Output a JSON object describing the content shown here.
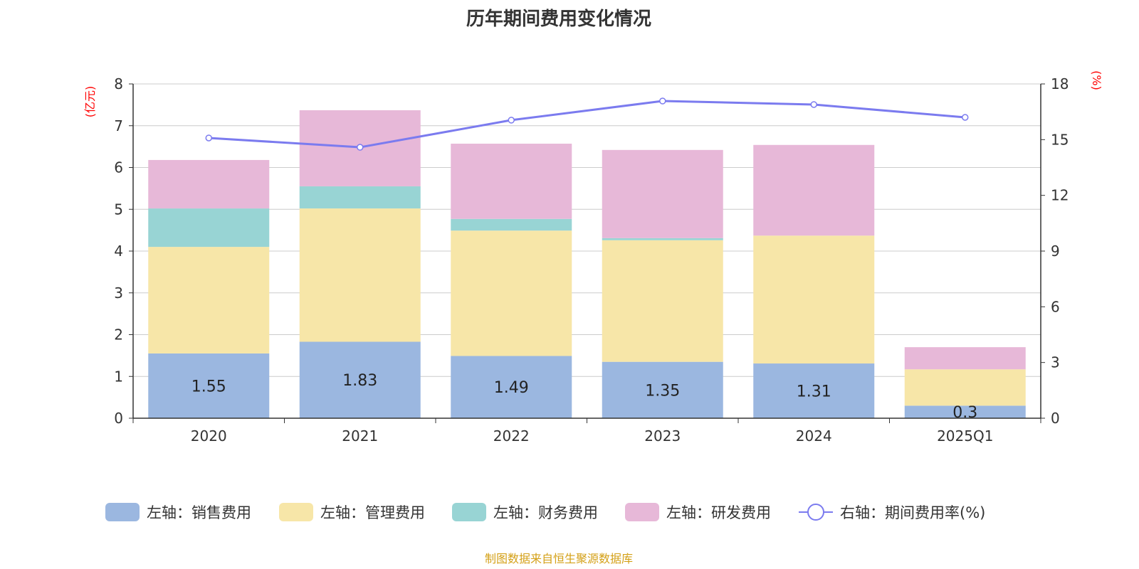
{
  "chart_data": {
    "type": "bar",
    "stacked": true,
    "title": "历年期间费用变化情况",
    "source": "制图数据来自恒生聚源数据库",
    "categories": [
      "2020",
      "2021",
      "2022",
      "2023",
      "2024",
      "2025Q1"
    ],
    "y_left": {
      "label": "(亿元)",
      "range": [
        0,
        8
      ],
      "ticks": [
        0,
        1,
        2,
        3,
        4,
        5,
        6,
        7,
        8
      ]
    },
    "y_right": {
      "label": "(%)",
      "range": [
        0,
        18
      ],
      "ticks": [
        0,
        3,
        6,
        9,
        12,
        15,
        18
      ]
    },
    "grid": true,
    "legend_position": "bottom",
    "series": [
      {
        "name": "左轴：销售费用",
        "type": "bar",
        "axis": "left",
        "color": "#9bb7e0",
        "values": [
          1.55,
          1.83,
          1.49,
          1.35,
          1.31,
          0.3
        ],
        "show_labels": true
      },
      {
        "name": "左轴：管理费用",
        "type": "bar",
        "axis": "left",
        "color": "#f7e6a8",
        "values": [
          2.55,
          3.19,
          3.0,
          2.91,
          3.06,
          0.87
        ]
      },
      {
        "name": "左轴：财务费用",
        "type": "bar",
        "axis": "left",
        "color": "#98d4d4",
        "values": [
          0.92,
          0.53,
          0.28,
          0.05,
          0.0,
          0.0
        ]
      },
      {
        "name": "左轴：研发费用",
        "type": "bar",
        "axis": "left",
        "color": "#e7b8d8",
        "values": [
          1.16,
          1.82,
          1.8,
          2.11,
          2.17,
          0.53
        ]
      },
      {
        "name": "右轴：期间费用率(%)",
        "type": "line",
        "axis": "right",
        "color": "#7b7bef",
        "values": [
          15.09,
          14.59,
          16.05,
          17.08,
          16.89,
          16.2
        ]
      }
    ]
  }
}
